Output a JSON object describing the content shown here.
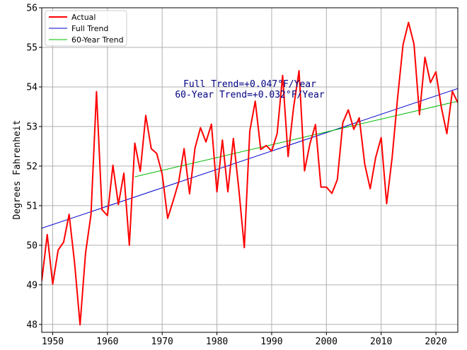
{
  "chart_data": {
    "type": "line",
    "ylabel": "Degrees Fahrenheit",
    "xlim": [
      1948,
      2024
    ],
    "ylim": [
      47.8,
      56
    ],
    "x_ticks": [
      1950,
      1960,
      1970,
      1980,
      1990,
      2000,
      2010,
      2020
    ],
    "y_ticks": [
      48,
      49,
      50,
      51,
      52,
      53,
      54,
      55,
      56
    ],
    "grid": true,
    "legend_position": "top-left",
    "annotations": [
      "Full Trend=+0.047°F/Year",
      "60-Year Trend=+0.032°F/Year"
    ],
    "series": [
      {
        "name": "Actual",
        "color": "#ff0000",
        "x": [
          1948,
          1949,
          1950,
          1951,
          1952,
          1953,
          1954,
          1955,
          1956,
          1957,
          1958,
          1959,
          1960,
          1961,
          1962,
          1963,
          1964,
          1965,
          1966,
          1967,
          1968,
          1969,
          1970,
          1971,
          1972,
          1973,
          1974,
          1975,
          1976,
          1977,
          1978,
          1979,
          1980,
          1981,
          1982,
          1983,
          1984,
          1985,
          1986,
          1987,
          1988,
          1989,
          1990,
          1991,
          1992,
          1993,
          1994,
          1995,
          1996,
          1997,
          1998,
          1999,
          2000,
          2001,
          2002,
          2003,
          2004,
          2005,
          2006,
          2007,
          2008,
          2009,
          2010,
          2011,
          2012,
          2013,
          2014,
          2015,
          2016,
          2017,
          2018,
          2019,
          2020,
          2021,
          2022,
          2023,
          2024
        ],
        "y": [
          49.1,
          50.27,
          49.02,
          49.88,
          50.08,
          50.78,
          49.55,
          47.99,
          49.8,
          50.78,
          53.88,
          50.9,
          50.75,
          52.02,
          51.03,
          51.82,
          50.0,
          52.58,
          51.87,
          53.28,
          52.44,
          52.32,
          51.8,
          50.68,
          51.12,
          51.59,
          52.44,
          51.3,
          52.46,
          52.97,
          52.61,
          53.06,
          51.35,
          52.66,
          51.35,
          52.7,
          51.42,
          49.94,
          52.88,
          53.64,
          52.42,
          52.52,
          52.38,
          52.82,
          54.29,
          52.24,
          53.48,
          54.41,
          51.88,
          52.57,
          53.05,
          51.47,
          51.47,
          51.31,
          51.66,
          53.1,
          53.42,
          52.93,
          53.22,
          52.05,
          51.43,
          52.22,
          52.72,
          51.05,
          52.21,
          53.72,
          55.07,
          55.63,
          55.08,
          53.3,
          54.75,
          54.11,
          54.38,
          53.48,
          52.82,
          53.89,
          53.6
        ]
      },
      {
        "name": "Full Trend",
        "color": "#0000cc",
        "x": [
          1948,
          2024
        ],
        "y": [
          50.43,
          53.96
        ]
      },
      {
        "name": "60-Year Trend",
        "color": "#00bb00",
        "x": [
          1965,
          2024
        ],
        "y": [
          51.73,
          53.64
        ]
      }
    ]
  }
}
